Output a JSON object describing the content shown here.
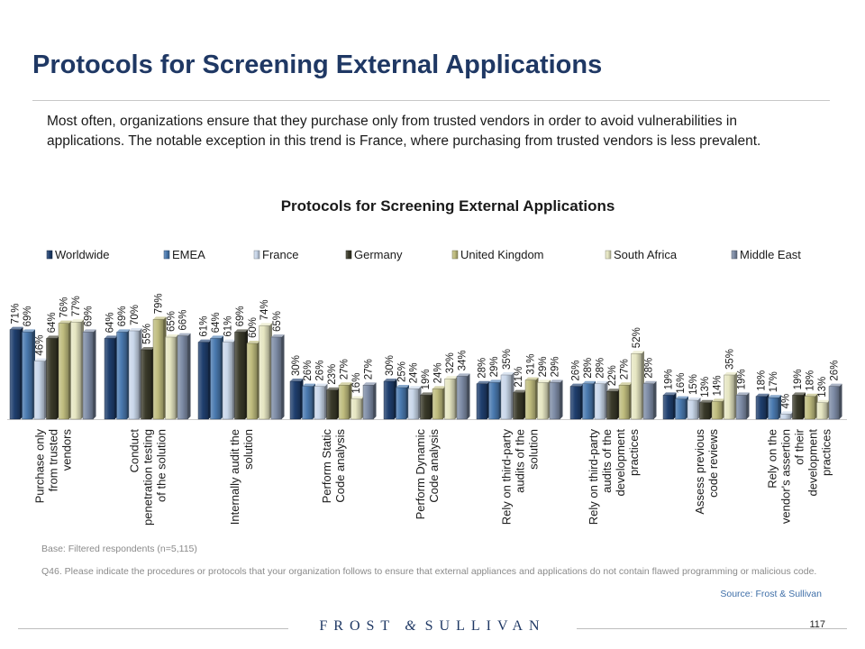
{
  "slide": {
    "title": "Protocols for Screening External Applications",
    "intro": "Most often, organizations ensure that they purchase only from trusted vendors in order to avoid vulnerabilities in applications. The notable exception in this trend is France, where purchasing from trusted vendors is less prevalent.",
    "base_note": "Base: Filtered respondents (n=5,115)",
    "question_note": "Q46. Please indicate the procedures or protocols that your organization follows to ensure that external appliances and applications do not contain flawed programming or malicious code.",
    "source": "Source: Frost & Sullivan",
    "footer_brand": {
      "left": "FROST",
      "amp": "&",
      "right": "SULLIVAN"
    },
    "page_number": "117"
  },
  "chart_data": {
    "type": "bar",
    "title": "Protocols for Screening External Applications",
    "legend_position": "top",
    "ylim": [
      0,
      100
    ],
    "value_suffix": "%",
    "categories": [
      "Purchase only from trusted vendors",
      "Conduct penetration testing of the solution",
      "Internally audit the solution",
      "Perform Static Code analysis",
      "Perform Dynamic Code analysis",
      "Rely on third-party audits of the solution",
      "Rely on third-party audits of the development practices",
      "Assess previous code reviews",
      "Rely on the vendor's assertion of their development practices"
    ],
    "category_lines": [
      [
        "Purchase only",
        "from trusted",
        "vendors"
      ],
      [
        "Conduct",
        "penetration testing",
        "of the solution"
      ],
      [
        "Internally audit the",
        "solution"
      ],
      [
        "Perform Static",
        "Code analysis"
      ],
      [
        "Perform Dynamic",
        "Code analysis"
      ],
      [
        "Rely on third-party",
        "audits of the",
        "solution"
      ],
      [
        "Rely on third-party",
        "audits of the",
        "development",
        "practices"
      ],
      [
        "Assess previous",
        "code reviews"
      ],
      [
        "Rely on the",
        "vendor's assertion",
        "of their",
        "development",
        "practices"
      ]
    ],
    "series": [
      {
        "name": "Worldwide",
        "color": "#1f3f6e",
        "values": [
          71,
          64,
          61,
          30,
          30,
          28,
          26,
          19,
          18
        ]
      },
      {
        "name": "EMEA",
        "color": "#4a7ab0",
        "values": [
          69,
          69,
          64,
          26,
          25,
          29,
          28,
          16,
          17
        ]
      },
      {
        "name": "France",
        "color": "#c9d7ea",
        "values": [
          46,
          70,
          61,
          26,
          24,
          35,
          28,
          15,
          4
        ]
      },
      {
        "name": "Germany",
        "color": "#3a3a2a",
        "values": [
          64,
          55,
          69,
          23,
          19,
          21,
          22,
          13,
          19
        ]
      },
      {
        "name": "United Kingdom",
        "color": "#bfbc7e",
        "values": [
          76,
          79,
          60,
          27,
          24,
          31,
          27,
          14,
          18
        ]
      },
      {
        "name": "South Africa",
        "color": "#e6e6c2",
        "values": [
          77,
          65,
          74,
          16,
          32,
          29,
          52,
          35,
          13
        ]
      },
      {
        "name": "Middle East",
        "color": "#7e8ca6",
        "values": [
          69,
          66,
          65,
          27,
          34,
          29,
          28,
          19,
          26
        ]
      }
    ]
  }
}
